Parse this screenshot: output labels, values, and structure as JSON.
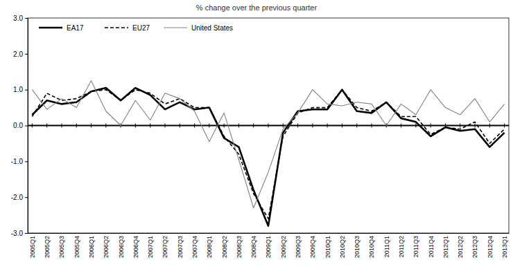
{
  "chart_data": {
    "type": "line",
    "title": "% change over the previous quarter",
    "categories": [
      "2005Q1",
      "2005Q2",
      "2005Q3",
      "2005Q4",
      "2006Q1",
      "2006Q2",
      "2006Q3",
      "2006Q4",
      "2007Q1",
      "2007Q2",
      "2007Q3",
      "2007Q4",
      "2008Q1",
      "2008Q2",
      "2008Q3",
      "2008Q4",
      "2009Q1",
      "2009Q2",
      "2009Q3",
      "2009Q4",
      "2010Q1",
      "2010Q2",
      "2010Q3",
      "2010Q4",
      "2011Q1",
      "2011Q2",
      "2011Q3",
      "2011Q4",
      "2012Q1",
      "2012Q2",
      "2012Q3",
      "2012Q4",
      "2013Q1"
    ],
    "series": [
      {
        "name": "EA17",
        "color": "#000000",
        "line_style": "solid",
        "values": [
          0.3,
          0.7,
          0.6,
          0.65,
          0.95,
          1.05,
          0.7,
          1.05,
          0.85,
          0.45,
          0.65,
          0.45,
          0.5,
          -0.35,
          -0.6,
          -1.8,
          -2.8,
          -0.2,
          0.4,
          0.45,
          0.45,
          1.0,
          0.4,
          0.35,
          0.65,
          0.2,
          0.1,
          -0.3,
          -0.05,
          -0.15,
          -0.1,
          -0.6,
          -0.2
        ]
      },
      {
        "name": "EU27",
        "color": "#000000",
        "line_style": "dashed",
        "values": [
          0.25,
          0.9,
          0.7,
          0.75,
          0.95,
          1.0,
          0.7,
          1.0,
          0.9,
          0.6,
          0.75,
          0.5,
          0.5,
          -0.3,
          -0.8,
          -1.9,
          -2.6,
          -0.3,
          0.35,
          0.5,
          0.5,
          1.0,
          0.5,
          0.4,
          0.65,
          0.25,
          0.25,
          -0.25,
          -0.05,
          -0.1,
          0.1,
          -0.5,
          -0.1
        ]
      },
      {
        "name": "United States",
        "color": "#808080",
        "line_style": "solid",
        "values": [
          1.0,
          0.45,
          0.75,
          0.5,
          1.25,
          0.4,
          0.0,
          0.7,
          0.15,
          0.9,
          0.75,
          0.4,
          -0.45,
          0.35,
          -0.95,
          -2.3,
          -1.3,
          -0.1,
          0.35,
          1.0,
          0.6,
          0.55,
          0.65,
          0.6,
          0.0,
          0.6,
          0.3,
          1.0,
          0.5,
          0.3,
          0.75,
          0.1,
          0.6
        ]
      }
    ],
    "ylim": [
      -3,
      3
    ],
    "yticks": [
      {
        "value": -3,
        "label": "-3.0"
      },
      {
        "value": -2,
        "label": "-2.0"
      },
      {
        "value": -1,
        "label": "-1.0"
      },
      {
        "value": 0,
        "label": "0.0"
      },
      {
        "value": 1,
        "label": "1.0"
      },
      {
        "value": 2,
        "label": "2.0"
      },
      {
        "value": 3,
        "label": "3.0"
      }
    ],
    "grid": false,
    "legend": "upper left"
  }
}
